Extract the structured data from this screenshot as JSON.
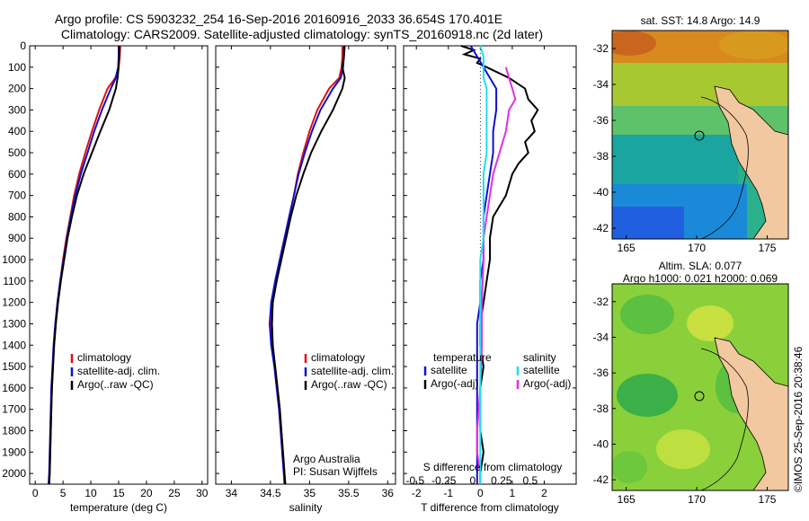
{
  "header": {
    "line1": "Argo profile: CS 5903232_254 16-Sep-2016 20160916_2033 36.654S 170.401E",
    "line2": "Climatology: CARS2009. Satellite-adjusted climatology: synTS_20160918.nc (2d later)"
  },
  "colors": {
    "climatology": "#e01010",
    "satellite": "#1010d0",
    "argo": "#000000",
    "sal_sat": "#20e0f0",
    "sal_argo": "#e030e0"
  },
  "chart_data": [
    {
      "type": "line",
      "name": "temperature-profile",
      "xlabel": "temperature (deg C)",
      "xlim": [
        -1,
        31
      ],
      "ylim": [
        2050,
        0
      ],
      "xticks": [
        0,
        5,
        10,
        15,
        20,
        25,
        30
      ],
      "yticks": [
        0,
        100,
        200,
        300,
        400,
        500,
        600,
        700,
        800,
        900,
        1000,
        1100,
        1200,
        1300,
        1400,
        1500,
        1600,
        1700,
        1800,
        1900,
        2000
      ],
      "legend": [
        "climatology",
        "satellite-adj. clim.",
        "Argo(..raw -QC)"
      ],
      "series": [
        {
          "key": "clim",
          "depth": [
            0,
            50,
            100,
            150,
            200,
            300,
            400,
            500,
            600,
            700,
            800,
            900,
            1000,
            1100,
            1200,
            1300,
            1400,
            1500,
            1600,
            1700,
            1800,
            1900,
            2000,
            2050
          ],
          "values": [
            15.3,
            15.2,
            15.0,
            14.4,
            13.0,
            11.5,
            10.2,
            9.0,
            7.9,
            7.0,
            6.3,
            5.6,
            5.0,
            4.5,
            4.0,
            3.7,
            3.4,
            3.2,
            3.0,
            2.9,
            2.8,
            2.7,
            2.6,
            2.5
          ]
        },
        {
          "key": "sat",
          "depth": [
            0,
            50,
            100,
            150,
            200,
            300,
            400,
            500,
            600,
            700,
            800,
            900,
            1000,
            1100,
            1200,
            1300,
            1400,
            1500,
            1600,
            1700,
            1800,
            1900,
            2000,
            2050
          ],
          "values": [
            15.0,
            15.0,
            14.9,
            14.5,
            13.6,
            12.0,
            10.6,
            9.4,
            8.2,
            7.2,
            6.4,
            5.7,
            5.1,
            4.5,
            4.0,
            3.6,
            3.3,
            3.1,
            2.9,
            2.8,
            2.7,
            2.6,
            2.5,
            2.4
          ]
        },
        {
          "key": "argo",
          "depth": [
            0,
            50,
            100,
            150,
            200,
            300,
            400,
            500,
            600,
            700,
            800,
            900,
            1000,
            1100,
            1200,
            1300,
            1400,
            1500,
            1600,
            1700,
            1800,
            1900,
            2000,
            2050
          ],
          "values": [
            15.1,
            15.1,
            15.0,
            14.8,
            14.5,
            13.3,
            11.7,
            10.2,
            8.7,
            7.5,
            6.6,
            5.8,
            5.2,
            4.6,
            4.1,
            3.7,
            3.4,
            3.2,
            3.0,
            2.9,
            2.8,
            2.7,
            2.6,
            2.5
          ]
        }
      ]
    },
    {
      "type": "line",
      "name": "salinity-profile",
      "xlabel": "salinity",
      "xlim": [
        33.8,
        36.1
      ],
      "ylim": [
        2050,
        0
      ],
      "xticks": [
        34,
        34.5,
        35,
        35.5,
        36
      ],
      "legend": [
        "climatology",
        "satellite-adj. clim.",
        "Argo(..raw -QC)"
      ],
      "annotation": [
        "Argo Australia",
        "PI: Susan Wijffels"
      ],
      "series": [
        {
          "key": "clim",
          "depth": [
            0,
            50,
            100,
            150,
            200,
            300,
            400,
            500,
            600,
            700,
            800,
            900,
            1000,
            1100,
            1200,
            1300,
            1400,
            1500,
            1600,
            1700,
            1800,
            1900,
            2000,
            2050
          ],
          "values": [
            35.42,
            35.42,
            35.41,
            35.38,
            35.25,
            35.1,
            35.0,
            34.92,
            34.85,
            34.8,
            34.74,
            34.68,
            34.62,
            34.56,
            34.52,
            34.5,
            34.52,
            34.56,
            34.59,
            34.62,
            34.64,
            34.66,
            34.68,
            34.69
          ]
        },
        {
          "key": "sat",
          "depth": [
            0,
            50,
            100,
            150,
            200,
            300,
            400,
            500,
            600,
            700,
            800,
            900,
            1000,
            1100,
            1200,
            1300,
            1400,
            1500,
            1600,
            1700,
            1800,
            1900,
            2000,
            2050
          ],
          "values": [
            35.44,
            35.44,
            35.43,
            35.4,
            35.3,
            35.14,
            35.03,
            34.94,
            34.86,
            34.8,
            34.74,
            34.68,
            34.62,
            34.56,
            34.51,
            34.49,
            34.51,
            34.55,
            34.58,
            34.61,
            34.63,
            34.65,
            34.67,
            34.68
          ]
        },
        {
          "key": "argo",
          "depth": [
            0,
            50,
            100,
            150,
            200,
            300,
            400,
            500,
            600,
            700,
            800,
            900,
            1000,
            1100,
            1200,
            1300,
            1400,
            1500,
            1600,
            1700,
            1800,
            1900,
            2000,
            2050
          ],
          "values": [
            35.45,
            35.44,
            35.42,
            35.45,
            35.42,
            35.3,
            35.15,
            35.02,
            34.92,
            34.83,
            34.76,
            34.7,
            34.64,
            34.58,
            34.53,
            34.52,
            34.53,
            34.56,
            34.59,
            34.62,
            34.64,
            34.66,
            34.68,
            34.69
          ]
        }
      ]
    },
    {
      "type": "line",
      "name": "difference-profile",
      "xlabel": "T difference from climatology",
      "xlabel2": "S difference from climatology",
      "xlim": [
        -2.4,
        3.0
      ],
      "ylim": [
        2050,
        0
      ],
      "xticks": [
        -2,
        -1,
        0,
        1,
        2
      ],
      "xticks_top": [
        -0.5,
        -0.25,
        0,
        0.25,
        0.5
      ],
      "legend_titles": [
        "temperature",
        "salinity"
      ],
      "legend": [
        "satellite",
        "Argo(-adj)",
        "satellite",
        "Argo(-adj)"
      ],
      "series": [
        {
          "key": "t_argo",
          "depth": [
            0,
            20,
            40,
            60,
            80,
            100,
            150,
            200,
            250,
            300,
            350,
            400,
            450,
            500,
            550,
            600,
            700,
            800,
            900,
            1000,
            1100,
            1200,
            1300,
            1400,
            1500,
            1600,
            1700,
            1800,
            1900,
            2000,
            2050
          ],
          "values": [
            -0.6,
            -0.2,
            -0.5,
            0.0,
            -0.1,
            0.2,
            0.9,
            1.4,
            1.5,
            1.8,
            1.6,
            1.7,
            1.4,
            1.5,
            1.2,
            1.0,
            0.8,
            0.4,
            0.3,
            0.3,
            0.2,
            0.1,
            0.0,
            0.0,
            0.1,
            0.0,
            0.0,
            0.0,
            0.1,
            0.0,
            0.0
          ]
        },
        {
          "key": "t_sat",
          "depth": [
            0,
            50,
            100,
            150,
            200,
            300,
            400,
            500,
            600,
            700,
            800,
            900,
            1000,
            1100,
            1200,
            1300,
            1400,
            1500,
            1600,
            1700,
            1800,
            1900,
            2000,
            2050
          ],
          "values": [
            -0.3,
            -0.1,
            0.1,
            0.3,
            0.5,
            0.5,
            0.4,
            0.4,
            0.3,
            0.2,
            0.1,
            0.1,
            0.1,
            0.0,
            0.0,
            -0.1,
            -0.1,
            -0.1,
            -0.1,
            -0.1,
            -0.1,
            -0.1,
            -0.1,
            -0.1
          ]
        },
        {
          "key": "s_argo",
          "depth": [
            100,
            150,
            200,
            250,
            300,
            400,
            500,
            600,
            700,
            800,
            900,
            1000,
            1200,
            1400,
            1600,
            1800,
            1900,
            2000
          ],
          "values": [
            0.8,
            0.9,
            1.0,
            1.1,
            0.9,
            0.8,
            0.6,
            0.4,
            0.3,
            0.2,
            0.1,
            0.1,
            0.05,
            0.05,
            0.0,
            -0.1,
            -0.1,
            0.0
          ]
        },
        {
          "key": "s_sat",
          "depth": [
            0,
            50,
            100,
            150,
            200,
            300,
            400,
            500,
            600,
            700,
            800,
            900,
            1000,
            1200,
            1400,
            1600,
            1800,
            2000,
            2050
          ],
          "values": [
            0.0,
            0.1,
            0.1,
            0.1,
            0.2,
            0.2,
            0.2,
            0.2,
            0.1,
            0.1,
            0.1,
            0.1,
            0.0,
            0.0,
            0.0,
            0.0,
            0.0,
            0.0,
            0.0
          ]
        }
      ]
    },
    {
      "type": "heatmap",
      "name": "sst-map",
      "title": "sat. SST: 14.8 Argo: 14.9",
      "xlim": [
        164,
        176.5
      ],
      "ylim": [
        -42.6,
        -31
      ],
      "xticks": [
        165,
        170,
        175
      ],
      "yticks": [
        -32,
        -34,
        -36,
        -38,
        -40,
        -42
      ],
      "marker": [
        170.4,
        -36.65
      ]
    },
    {
      "type": "heatmap",
      "name": "sla-map",
      "title": "Altim. SLA: 0.077",
      "subtitle": "Argo h1000: 0.021 h2000: 0.069",
      "xlim": [
        164,
        176.5
      ],
      "ylim": [
        -42.6,
        -31
      ],
      "xticks": [
        165,
        170,
        175
      ],
      "yticks": [
        -32,
        -34,
        -36,
        -38,
        -40,
        -42
      ],
      "marker": [
        170.4,
        -36.65
      ]
    }
  ],
  "credit": "©IMOS 25-Sep-2016 20:38:46"
}
